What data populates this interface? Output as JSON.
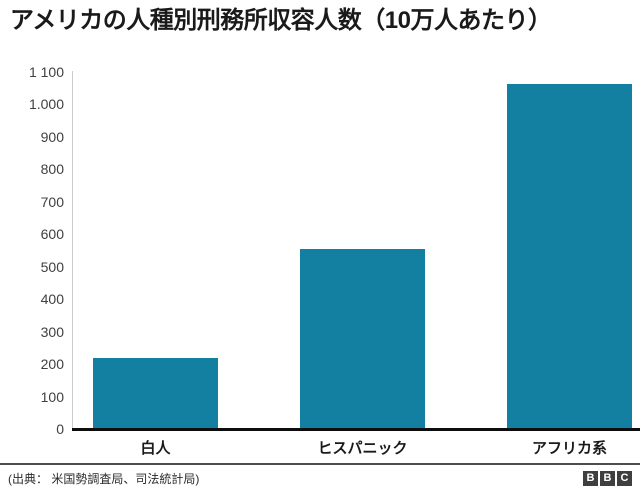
{
  "title": "アメリカの人種別刑務所収容人数（10万人あたり）",
  "colors": {
    "bar": "#1380A1",
    "axis_line": "#cccccc",
    "baseline": "#0d0d0d",
    "tick_text": "#404040",
    "category_text": "#1a1a1a",
    "title_text": "#1a1a1a"
  },
  "chart_data": {
    "type": "bar",
    "title": "アメリカの人種別刑務所収容人数（10万人あたり）",
    "categories": [
      "白人",
      "ヒスパニック",
      "アフリカ系"
    ],
    "values": [
      215,
      550,
      1060
    ],
    "xlabel": "",
    "ylabel": "",
    "ylim": [
      0,
      1100
    ],
    "grid": false,
    "legend": "none",
    "yticks": [
      {
        "value": 0,
        "label": "0"
      },
      {
        "value": 100,
        "label": "100"
      },
      {
        "value": 200,
        "label": "200"
      },
      {
        "value": 300,
        "label": "300"
      },
      {
        "value": 400,
        "label": "400"
      },
      {
        "value": 500,
        "label": "500"
      },
      {
        "value": 600,
        "label": "600"
      },
      {
        "value": 700,
        "label": "700"
      },
      {
        "value": 800,
        "label": "800"
      },
      {
        "value": 900,
        "label": "900"
      },
      {
        "value": 1000,
        "label": "1.000"
      },
      {
        "value": 1100,
        "label": "1 100"
      }
    ]
  },
  "footer": {
    "source": "(出典： 米国勢調査局、司法統計局)",
    "logo_letters": [
      "B",
      "B",
      "C"
    ]
  }
}
